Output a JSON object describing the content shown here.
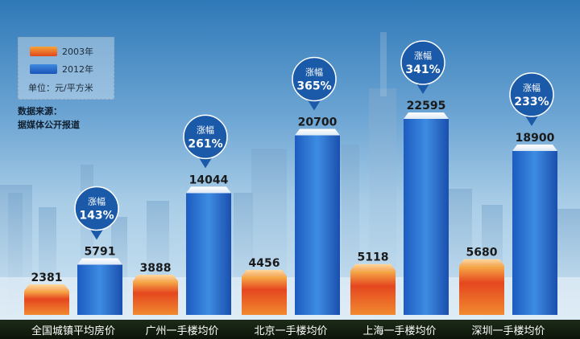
{
  "legend": {
    "items": [
      {
        "label": "2003年",
        "color": "#ee6a25"
      },
      {
        "label": "2012年",
        "color": "#2a6fcf"
      }
    ],
    "unit": "单位：元/平方米"
  },
  "source": {
    "line1": "数据来源：",
    "line2": "据媒体公开报道"
  },
  "bubble_label": "涨幅",
  "chart_data": {
    "type": "bar",
    "categories": [
      "全国城镇平均房价",
      "广州一手楼均价",
      "北京一手楼均价",
      "上海一手楼均价",
      "深圳一手楼均价"
    ],
    "series": [
      {
        "name": "2003年",
        "values": [
          2381,
          3888,
          4456,
          5118,
          5680
        ],
        "color": "#ee6a25"
      },
      {
        "name": "2012年",
        "values": [
          5791,
          14044,
          20700,
          22595,
          18900
        ],
        "color": "#2a6fcf"
      }
    ],
    "increase": [
      "143%",
      "261%",
      "365%",
      "341%",
      "233%"
    ],
    "unit": "元/平方米",
    "ylim": [
      0,
      22595
    ],
    "grid": false,
    "legend_position": "top-left"
  }
}
